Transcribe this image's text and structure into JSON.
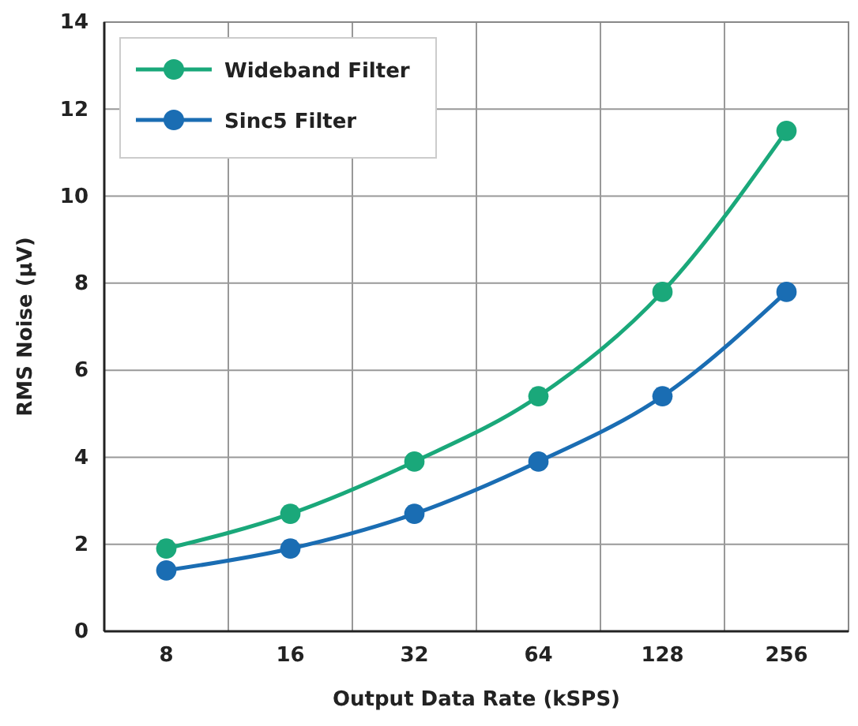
{
  "chart_data": {
    "type": "line",
    "xlabel": "Output Data Rate (kSPS)",
    "ylabel": "RMS Noise (µV)",
    "categories": [
      "8",
      "16",
      "32",
      "64",
      "128",
      "256"
    ],
    "series": [
      {
        "name": "Wideband Filter",
        "color": "#1aa87a",
        "values": [
          1.9,
          2.7,
          3.9,
          5.4,
          7.8,
          11.5
        ]
      },
      {
        "name": "Sinc5 Filter",
        "color": "#1a6db3",
        "values": [
          1.4,
          1.9,
          2.7,
          3.9,
          5.4,
          7.8
        ]
      }
    ],
    "ylim": [
      0,
      14
    ],
    "yticks": [
      0,
      2,
      4,
      6,
      8,
      10,
      12,
      14
    ],
    "grid": true,
    "legend": "top left",
    "marker": "circle",
    "line_style": "solid"
  }
}
